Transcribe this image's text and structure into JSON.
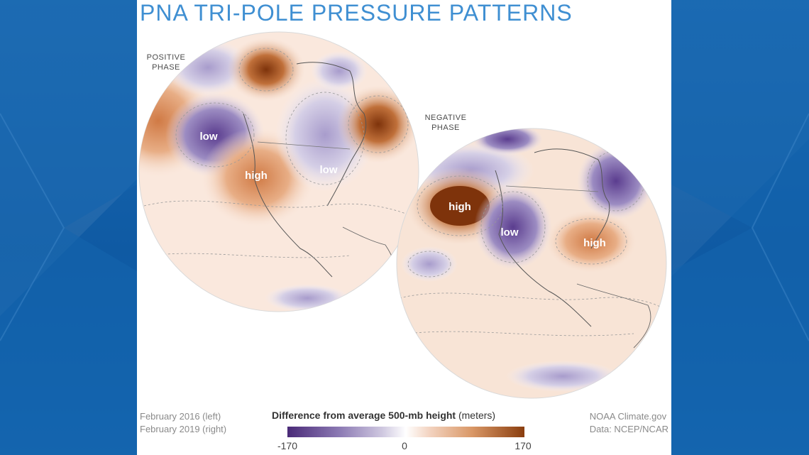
{
  "title": "PNA TRI-POLE PRESSURE PATTERNS",
  "positive_phase": {
    "line1": "POSITIVE",
    "line2": "PHASE"
  },
  "negative_phase": {
    "line1": "NEGATIVE",
    "line2": "PHASE"
  },
  "positive_labels": {
    "low_pacific": "low",
    "high_west": "high",
    "low_east": "low"
  },
  "negative_labels": {
    "high_pacific": "high",
    "low_west": "low",
    "high_east": "high"
  },
  "legend": {
    "title_bold": "Difference from average 500-mb height",
    "title_unit": " (meters)",
    "min": "-170",
    "mid": "0",
    "max": "170",
    "colors": {
      "low": "#4a2a78",
      "zero": "#ffffff",
      "high": "#8a3e0f"
    }
  },
  "dates": {
    "left": "February 2016 (left)",
    "right": "February 2019 (right)"
  },
  "credits": {
    "line1": "NOAA Climate.gov",
    "line2": "Data: NCEP/NCAR"
  },
  "accent_color": "#3f8fd2"
}
